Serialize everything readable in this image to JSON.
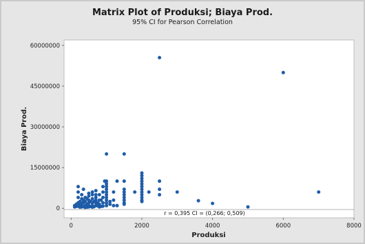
{
  "chart_data": {
    "type": "scatter",
    "title": "Matrix Plot of Produksi; Biaya Prod.",
    "subtitle": "95% CI for Pearson Correlation",
    "xlabel": "Produksi",
    "ylabel": "Biaya Prod.",
    "xlim": [
      -200,
      8000
    ],
    "ylim": [
      -3500000,
      62000000
    ],
    "x_ticks": [
      0,
      2000,
      4000,
      6000,
      8000
    ],
    "x_tick_labels": [
      "0",
      "2000",
      "4000",
      "6000",
      "8000"
    ],
    "y_ticks": [
      0,
      15000000,
      30000000,
      45000000,
      60000000
    ],
    "y_tick_labels": [
      "0",
      "15000000",
      "30000000",
      "45000000",
      "60000000"
    ],
    "annotation": "r = 0,395   CI = (0,266; 0,509)",
    "grid": false,
    "colors": {
      "point": "#1f5da8",
      "plot_bg": "#ffffff",
      "outer_bg": "#e6e6e6"
    },
    "points": [
      [
        2500,
        55500000
      ],
      [
        6000,
        50000000
      ],
      [
        1000,
        20000000
      ],
      [
        1500,
        20000000
      ],
      [
        7000,
        6000000
      ],
      [
        3000,
        6000000
      ],
      [
        3600,
        2800000
      ],
      [
        4000,
        1800000
      ],
      [
        5000,
        500000
      ],
      [
        2000,
        13000000
      ],
      [
        2000,
        12000000
      ],
      [
        2000,
        11000000
      ],
      [
        2000,
        10000000
      ],
      [
        2000,
        9000000
      ],
      [
        2000,
        8000000
      ],
      [
        2000,
        7000000
      ],
      [
        2000,
        6000000
      ],
      [
        2000,
        5000000
      ],
      [
        2000,
        4000000
      ],
      [
        2000,
        3000000
      ],
      [
        2000,
        2500000
      ],
      [
        1800,
        6000000
      ],
      [
        2200,
        6000000
      ],
      [
        2500,
        10000000
      ],
      [
        2500,
        7000000
      ],
      [
        2500,
        5000000
      ],
      [
        1500,
        10000000
      ],
      [
        1500,
        7000000
      ],
      [
        1500,
        6000000
      ],
      [
        1500,
        5000000
      ],
      [
        1500,
        4000000
      ],
      [
        1500,
        3000000
      ],
      [
        1500,
        2000000
      ],
      [
        1500,
        1500000
      ],
      [
        1300,
        10000000
      ],
      [
        1200,
        6000000
      ],
      [
        1200,
        3000000
      ],
      [
        1200,
        1000000
      ],
      [
        1000,
        10000000
      ],
      [
        1000,
        9000000
      ],
      [
        1000,
        8000000
      ],
      [
        1000,
        7000000
      ],
      [
        1000,
        6000000
      ],
      [
        1000,
        5000000
      ],
      [
        1000,
        4000000
      ],
      [
        1000,
        3000000
      ],
      [
        1000,
        2000000
      ],
      [
        1000,
        1000000
      ],
      [
        950,
        10000000
      ],
      [
        900,
        8000000
      ],
      [
        900,
        6000000
      ],
      [
        900,
        4000000
      ],
      [
        900,
        2000000
      ],
      [
        900,
        800000
      ],
      [
        850,
        3000000
      ],
      [
        800,
        5000000
      ],
      [
        800,
        3000000
      ],
      [
        800,
        1500000
      ],
      [
        800,
        500000
      ],
      [
        750,
        2000000
      ],
      [
        700,
        5000000
      ],
      [
        700,
        4000000
      ],
      [
        700,
        3000000
      ],
      [
        700,
        2000000
      ],
      [
        700,
        1000000
      ],
      [
        650,
        600000
      ],
      [
        600,
        5000000
      ],
      [
        600,
        3500000
      ],
      [
        600,
        2000000
      ],
      [
        600,
        1000000
      ],
      [
        600,
        400000
      ],
      [
        550,
        2500000
      ],
      [
        500,
        4500000
      ],
      [
        500,
        3000000
      ],
      [
        500,
        2000000
      ],
      [
        500,
        1000000
      ],
      [
        500,
        500000
      ],
      [
        450,
        1500000
      ],
      [
        400,
        4000000
      ],
      [
        400,
        2500000
      ],
      [
        400,
        1000000
      ],
      [
        400,
        300000
      ],
      [
        350,
        3000000
      ],
      [
        350,
        2000000
      ],
      [
        300,
        5000000
      ],
      [
        300,
        3500000
      ],
      [
        300,
        2000000
      ],
      [
        300,
        1000000
      ],
      [
        300,
        500000
      ],
      [
        250,
        2500000
      ],
      [
        250,
        1500000
      ],
      [
        200,
        8000000
      ],
      [
        200,
        6000000
      ],
      [
        200,
        4000000
      ],
      [
        200,
        2000000
      ],
      [
        200,
        800000
      ],
      [
        150,
        1500000
      ],
      [
        150,
        700000
      ],
      [
        100,
        1000000
      ],
      [
        100,
        500000
      ],
      [
        350,
        7000000
      ],
      [
        600,
        6000000
      ],
      [
        700,
        6500000
      ],
      [
        500,
        5500000
      ],
      [
        450,
        3500000
      ],
      [
        650,
        2500000
      ],
      [
        750,
        900000
      ],
      [
        850,
        700000
      ],
      [
        550,
        700000
      ],
      [
        350,
        600000
      ],
      [
        450,
        400000
      ],
      [
        250,
        400000
      ],
      [
        1100,
        1500000
      ],
      [
        1100,
        2500000
      ],
      [
        1300,
        1000000
      ]
    ]
  }
}
